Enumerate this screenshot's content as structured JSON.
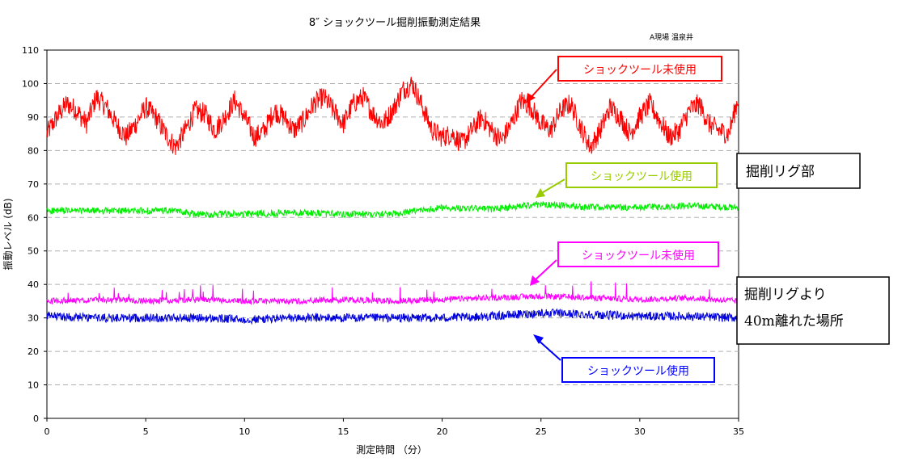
{
  "chart_data": {
    "type": "line",
    "title": "8″ ショックツール掘削振動測定結果",
    "subtitle": "A現場 温泉井",
    "xlabel": "測定時間 （分）",
    "ylabel": "振動レベル (dB)",
    "xlim": [
      0,
      35
    ],
    "ylim": [
      0,
      110
    ],
    "xticks": [
      0,
      5,
      10,
      15,
      20,
      25,
      30,
      35
    ],
    "yticks": [
      0,
      10,
      20,
      30,
      40,
      50,
      60,
      70,
      80,
      90,
      100,
      110
    ],
    "grid": "horizontal dashed",
    "series": [
      {
        "name": "ショックツール未使用",
        "group": "掘削リグ部",
        "color": "#ff0000",
        "x": [
          0,
          0.5,
          1,
          1.5,
          2,
          2.5,
          3,
          3.5,
          4,
          4.5,
          5,
          5.5,
          6,
          6.5,
          7,
          7.5,
          8,
          8.5,
          9,
          9.5,
          10,
          10.5,
          11,
          11.5,
          12,
          12.5,
          13,
          13.5,
          14,
          14.5,
          15,
          15.5,
          16,
          16.5,
          17,
          17.5,
          18,
          18.5,
          19,
          19.5,
          20,
          20.5,
          21,
          21.5,
          22,
          22.5,
          23,
          23.5,
          24,
          24.5,
          25,
          25.5,
          26,
          26.5,
          27,
          27.5,
          28,
          28.5,
          29,
          29.5,
          30,
          30.5,
          31,
          31.5,
          32,
          32.5,
          33,
          33.5,
          34,
          34.5,
          35
        ],
        "values": [
          85,
          90,
          94,
          92,
          88,
          96,
          93,
          88,
          84,
          88,
          93,
          90,
          85,
          81,
          86,
          92,
          91,
          86,
          90,
          95,
          90,
          84,
          86,
          92,
          90,
          86,
          89,
          94,
          96,
          92,
          88,
          94,
          96,
          91,
          88,
          92,
          98,
          100,
          93,
          86,
          84,
          85,
          82,
          86,
          90,
          86,
          83,
          88,
          95,
          93,
          88,
          86,
          92,
          94,
          87,
          81,
          86,
          93,
          90,
          85,
          90,
          94,
          89,
          84,
          86,
          92,
          94,
          88,
          86,
          85,
          96
        ]
      },
      {
        "name": "ショックツール使用",
        "group": "掘削リグ部",
        "color": "#00ee00",
        "x": [
          0,
          2.5,
          5,
          6.5,
          7.5,
          10,
          12.5,
          15,
          17.5,
          20,
          22.5,
          25,
          27.5,
          30,
          32.5,
          35
        ],
        "values": [
          62,
          62,
          62,
          62,
          61,
          61,
          61.5,
          61,
          61,
          63,
          62.5,
          64,
          63,
          63,
          63.5,
          63
        ]
      },
      {
        "name": "ショックツール未使用",
        "group": "掘削リグより40m離れた場所",
        "color": "#ff00ff",
        "x": [
          0,
          2.5,
          5,
          7.5,
          10,
          12.5,
          15,
          17.5,
          20,
          22.5,
          25,
          27.5,
          30,
          32.5,
          35
        ],
        "values": [
          35,
          35.5,
          35,
          35.5,
          35,
          35,
          35.5,
          35,
          35.5,
          36,
          36.5,
          36,
          35.5,
          36,
          35
        ]
      },
      {
        "name": "ショックツール使用",
        "group": "掘削リグより40m離れた場所",
        "color": "#0000dd",
        "x": [
          0,
          2.5,
          5,
          7.5,
          10,
          12.5,
          15,
          17.5,
          20,
          22.5,
          25,
          27.5,
          30,
          32.5,
          35
        ],
        "values": [
          30.5,
          30,
          30,
          30,
          29.5,
          30,
          30,
          30,
          30,
          30.5,
          31.5,
          31,
          30.5,
          30.5,
          30
        ]
      }
    ],
    "annotations": {
      "box_labels": [
        "ショックツール未使用",
        "ショックツール使用",
        "ショックツール未使用",
        "ショックツール使用"
      ],
      "group_labels": [
        "掘削リグ部",
        "掘削リグより",
        "40m離れた場所"
      ]
    }
  }
}
